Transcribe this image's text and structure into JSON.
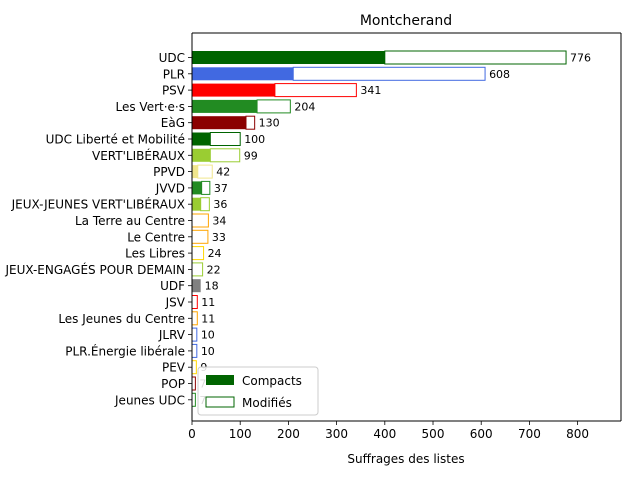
{
  "chart_data": {
    "type": "bar",
    "orientation": "horizontal",
    "title": "Montcherand",
    "xlabel": "Suffrages des listes",
    "ylabel": "",
    "xlim": [
      0,
      890
    ],
    "xticks": [
      0,
      100,
      200,
      300,
      400,
      500,
      600,
      700,
      800
    ],
    "grid": false,
    "legend": {
      "placement": "lower-left",
      "entries": [
        "Compacts",
        "Modifiés"
      ]
    },
    "categories": [
      "UDC",
      "PLR",
      "PSV",
      "Les Vert·e·s",
      "EàG",
      "UDC Liberté et Mobilité",
      "VERT'LIBÉRAUX",
      "PPVD",
      "JVVD",
      "JEUX-JEUNES VERT'LIBÉRAUX",
      "La Terre au Centre",
      "Le Centre",
      "Les Libres",
      "JEUX-ENGAGÉS POUR DEMAIN",
      "UDF",
      "JSV",
      "Les Jeunes du Centre",
      "JLRV",
      "PLR.Énergie libérale",
      "PEV",
      "POP",
      "Jeunes UDC"
    ],
    "series": [
      {
        "name": "Compacts",
        "values": [
          400,
          210,
          172,
          135,
          112,
          38,
          38,
          12,
          20,
          18,
          0,
          0,
          0,
          0,
          18,
          0,
          0,
          0,
          0,
          0,
          0,
          0
        ]
      },
      {
        "name": "Modifiés",
        "values": [
          376,
          398,
          169,
          69,
          18,
          62,
          61,
          30,
          17,
          18,
          34,
          33,
          24,
          22,
          0,
          11,
          11,
          10,
          10,
          9,
          7,
          7
        ]
      }
    ],
    "totals": [
      776,
      608,
      341,
      204,
      130,
      100,
      99,
      42,
      37,
      36,
      34,
      33,
      24,
      22,
      18,
      11,
      11,
      10,
      10,
      9,
      7,
      7
    ],
    "colors": [
      "#006400",
      "#4169e1",
      "#ff0000",
      "#228b22",
      "#8b0000",
      "#006400",
      "#9acd32",
      "#f0e68c",
      "#228b22",
      "#9acd32",
      "#ffa500",
      "#ffa500",
      "#ffd700",
      "#9acd32",
      "#808080",
      "#ff0000",
      "#ffa500",
      "#4169e1",
      "#4169e1",
      "#ffd700",
      "#8b0000",
      "#228b22"
    ]
  }
}
